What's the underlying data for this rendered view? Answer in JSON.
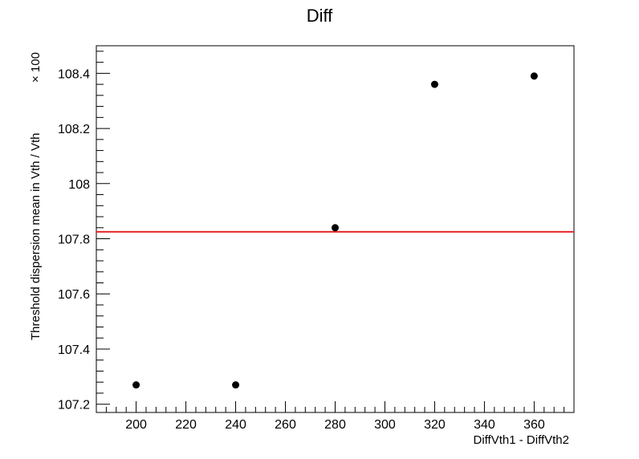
{
  "chart_data": {
    "type": "scatter",
    "title": "Diff",
    "xlabel": "DiffVth1 - DiffVth2",
    "ylabel": "Threshold dispersion mean in Vth / Vth",
    "y_multiplier": "× 100",
    "xlim": [
      184,
      376
    ],
    "ylim": [
      107.17,
      108.5
    ],
    "x_ticks": [
      200,
      220,
      240,
      260,
      280,
      300,
      320,
      340,
      360
    ],
    "y_ticks": [
      107.2,
      107.4,
      107.6,
      107.8,
      108,
      108.2,
      108.4
    ],
    "y_tick_labels": [
      "107.2",
      "107.4",
      "107.6",
      "107.8",
      "108",
      "108.2",
      "108.4"
    ],
    "points": [
      {
        "x": 200,
        "y": 107.27
      },
      {
        "x": 240,
        "y": 107.27
      },
      {
        "x": 280,
        "y": 107.84
      },
      {
        "x": 320,
        "y": 108.36
      },
      {
        "x": 360,
        "y": 108.39
      }
    ],
    "mean_line": {
      "y": 107.825,
      "color": "#e8262a"
    },
    "grid": false,
    "marker_color": "#000000"
  }
}
